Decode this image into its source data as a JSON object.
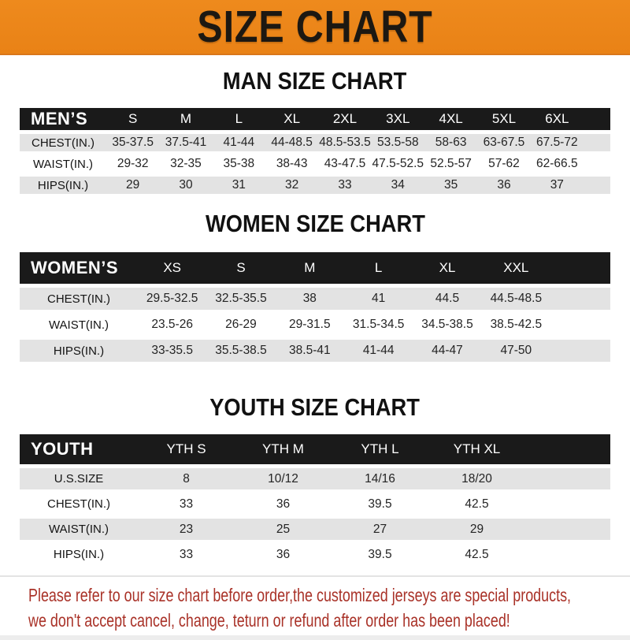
{
  "banner": {
    "title": "SIZE CHART"
  },
  "sections": [
    {
      "title": "MAN SIZE CHART",
      "group_label": "MEN’S",
      "sizes": [
        "S",
        "M",
        "L",
        "XL",
        "2XL",
        "3XL",
        "4XL",
        "5XL",
        "6XL"
      ],
      "rows": [
        {
          "label": "CHEST(IN.)",
          "values": [
            "35-37.5",
            "37.5-41",
            "41-44",
            "44-48.5",
            "48.5-53.5",
            "53.5-58",
            "58-63",
            "63-67.5",
            "67.5-72"
          ]
        },
        {
          "label": "WAIST(IN.)",
          "values": [
            "29-32",
            "32-35",
            "35-38",
            "38-43",
            "43-47.5",
            "47.5-52.5",
            "52.5-57",
            "57-62",
            "62-66.5"
          ]
        },
        {
          "label": "HIPS(IN.)",
          "values": [
            "29",
            "30",
            "31",
            "32",
            "33",
            "34",
            "35",
            "36",
            "37"
          ]
        }
      ]
    },
    {
      "title": "WOMEN SIZE CHART",
      "group_label": "WOMEN’S",
      "sizes": [
        "XS",
        "S",
        "M",
        "L",
        "XL",
        "XXL"
      ],
      "rows": [
        {
          "label": "CHEST(IN.)",
          "values": [
            "29.5-32.5",
            "32.5-35.5",
            "38",
            "41",
            "44.5",
            "44.5-48.5"
          ]
        },
        {
          "label": "WAIST(IN.)",
          "values": [
            "23.5-26",
            "26-29",
            "29-31.5",
            "31.5-34.5",
            "34.5-38.5",
            "38.5-42.5"
          ]
        },
        {
          "label": "HIPS(IN.)",
          "values": [
            "33-35.5",
            "35.5-38.5",
            "38.5-41",
            "41-44",
            "44-47",
            "47-50"
          ]
        }
      ]
    },
    {
      "title": "YOUTH SIZE CHART",
      "group_label": "YOUTH",
      "sizes": [
        "YTH S",
        "YTH M",
        "YTH L",
        "YTH XL"
      ],
      "rows": [
        {
          "label": "U.S.SIZE",
          "values": [
            "8",
            "10/12",
            "14/16",
            "18/20"
          ]
        },
        {
          "label": "CHEST(IN.)",
          "values": [
            "33",
            "36",
            "39.5",
            "42.5"
          ]
        },
        {
          "label": "WAIST(IN.)",
          "values": [
            "23",
            "25",
            "27",
            "29"
          ]
        },
        {
          "label": "HIPS(IN.)",
          "values": [
            "33",
            "36",
            "39.5",
            "42.5"
          ]
        }
      ]
    }
  ],
  "footer": {
    "line1": "Please refer to our size chart before order,the customized jerseys are special products,",
    "line2": "we don't accept cancel, change, teturn or refund after order has been placed!"
  },
  "colors": {
    "banner_bg": "#ee8a1d",
    "header_bar": "#1a1a1a",
    "row_alt": "#e3e3e3",
    "footer_text": "#a93228"
  }
}
